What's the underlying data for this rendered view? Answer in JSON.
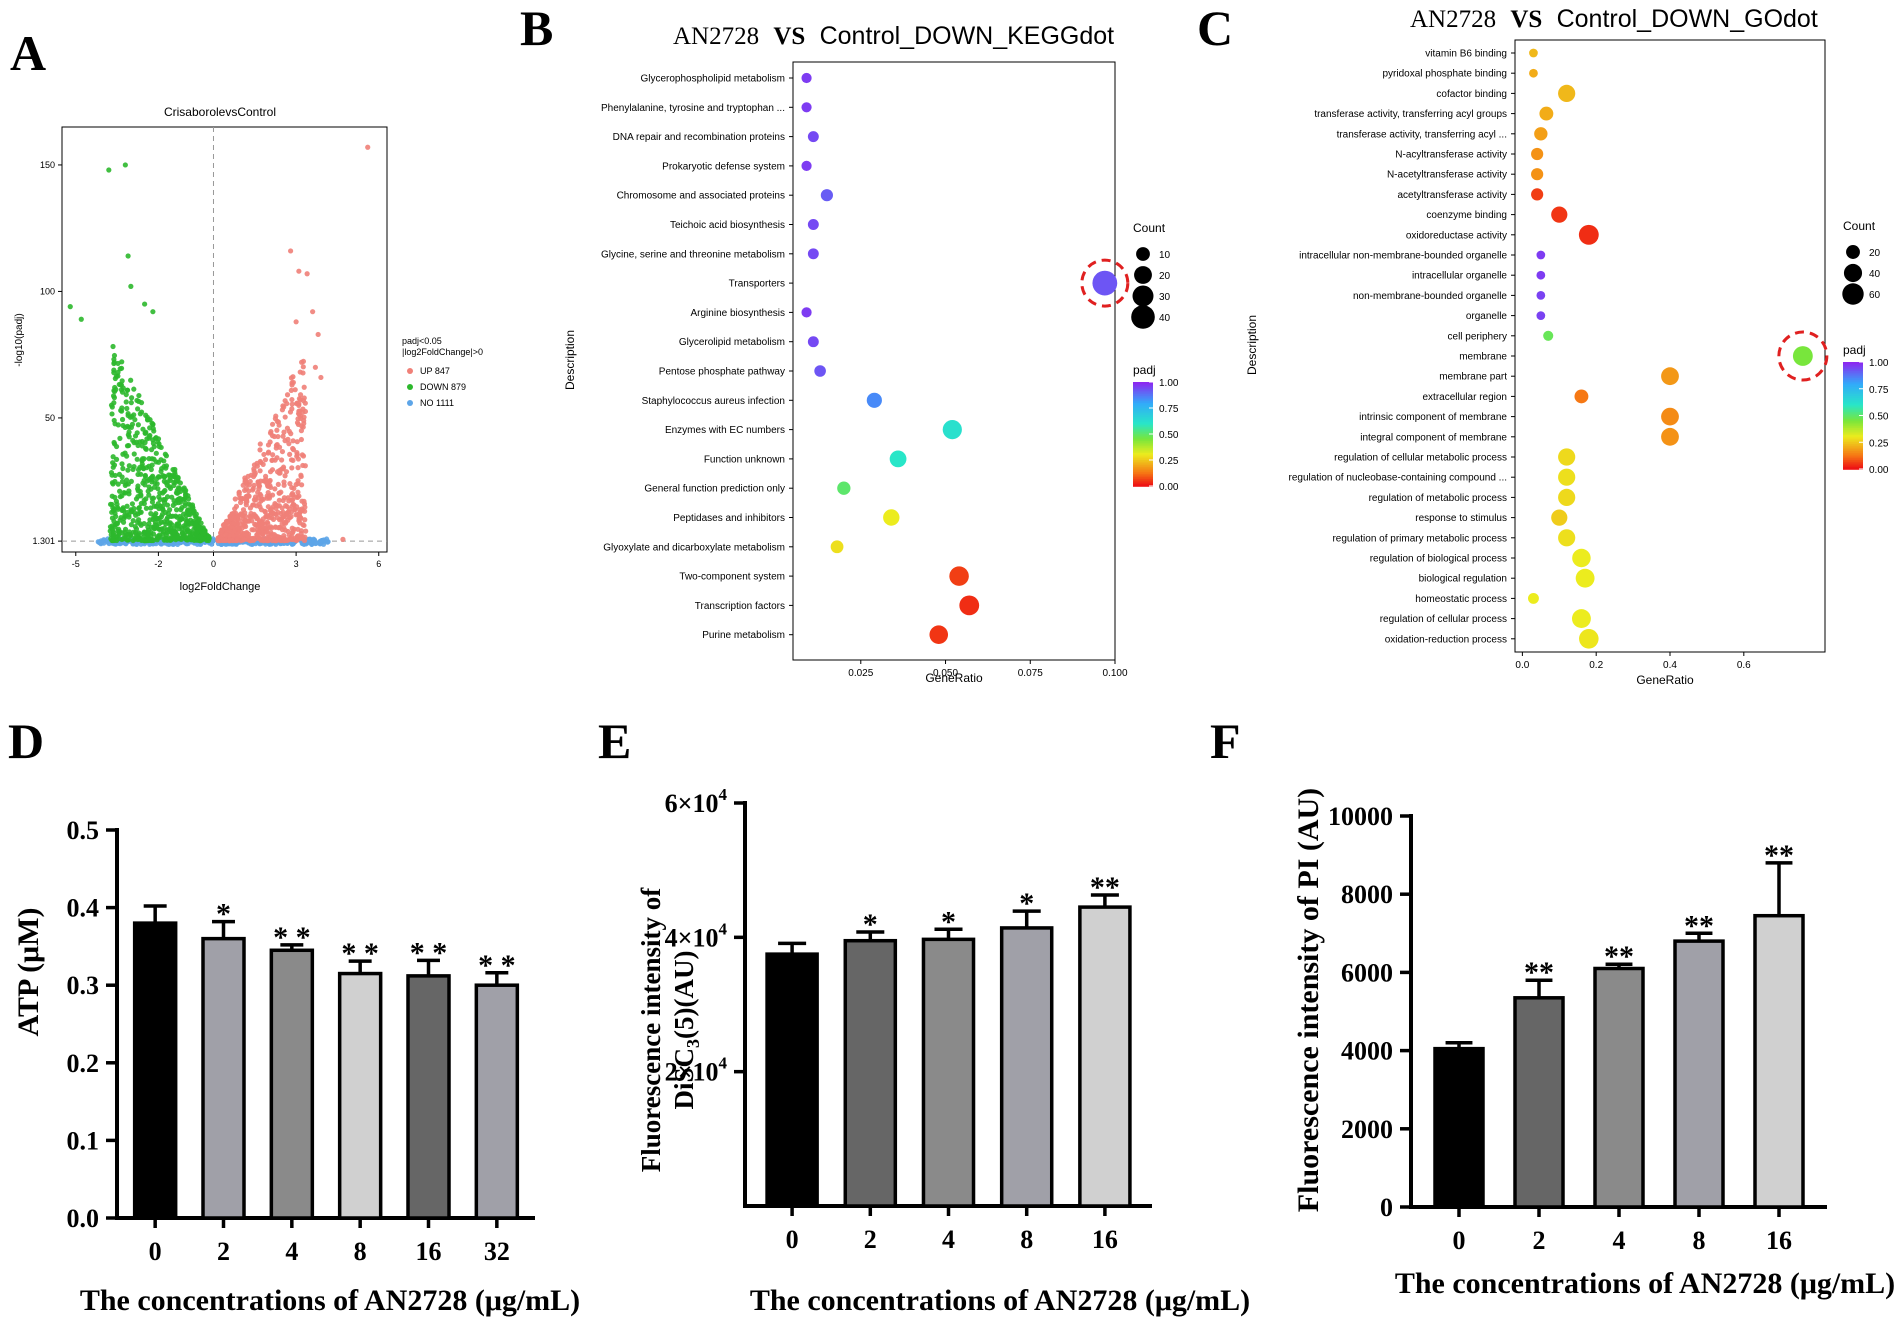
{
  "panel_labels": {
    "A": "A",
    "B": "B",
    "C": "C",
    "D": "D",
    "E": "E",
    "F": "F"
  },
  "colors": {
    "up": "#F08078",
    "down": "#2CB82C",
    "no": "#5DA5E8",
    "bar_black": "#000000",
    "bar_dark": "#666666",
    "bar_mid": "#8A8A8A",
    "bar_light": "#D0D0D0",
    "bar_light2": "#A0A0A8",
    "highlight": "#E02020"
  },
  "chart_data": [
    {
      "id": "A",
      "type": "scatter",
      "title": "CrisaborolevsControl",
      "xlabel": "log2FoldChange",
      "ylabel": "-log10(padj)",
      "xlim": [
        -5.5,
        6.3
      ],
      "ylim": [
        -3,
        165
      ],
      "xticks": [
        -5,
        -2,
        0,
        3,
        6
      ],
      "yticks": [
        1.301,
        50,
        100,
        150
      ],
      "ytick_labels": [
        "1.301",
        "50",
        "100",
        "150"
      ],
      "threshold_y": 1.301,
      "legend_title": "padj<0.05\n|log2FoldChange|>0",
      "legend": [
        {
          "name": "UP 847",
          "key": "up"
        },
        {
          "name": "DOWN 879",
          "key": "down"
        },
        {
          "name": "NO 1111",
          "key": "no"
        }
      ],
      "series": [
        {
          "name": "UP",
          "counts": 847,
          "outliers": [
            [
              5.6,
              157
            ],
            [
              2.8,
              116
            ],
            [
              3.1,
              108
            ],
            [
              3.4,
              107
            ],
            [
              3.6,
              92
            ],
            [
              3.8,
              83
            ],
            [
              3.7,
              70
            ],
            [
              3.9,
              66
            ],
            [
              3.2,
              72
            ],
            [
              2.9,
              64
            ],
            [
              3.0,
              88
            ],
            [
              4.7,
              2
            ]
          ]
        },
        {
          "name": "DOWN",
          "counts": 879,
          "outliers": [
            [
              -3.2,
              150
            ],
            [
              -3.8,
              148
            ],
            [
              -5.2,
              94
            ],
            [
              -4.8,
              89
            ],
            [
              -3.1,
              114
            ],
            [
              -3.0,
              102
            ],
            [
              -2.5,
              95
            ],
            [
              -2.2,
              92
            ],
            [
              -3.6,
              72
            ]
          ]
        },
        {
          "name": "NO",
          "counts": 1111
        }
      ]
    },
    {
      "id": "B",
      "type": "scatter",
      "title_left": "AN2728",
      "title_vs": "VS",
      "title_right": "Control_DOWN_KEGGdot",
      "xlabel": "GeneRatio",
      "ylabel": "Description",
      "xlim": [
        0.005,
        0.1
      ],
      "xticks": [
        0.025,
        0.05,
        0.075,
        0.1
      ],
      "xtick_labels": [
        "0.025",
        "0.050",
        "0.075",
        "0.100"
      ],
      "categories": [
        "Glycerophospholipid metabolism",
        "Phenylalanine, tyrosine and tryptophan ...",
        "DNA repair and recombination proteins",
        "Prokaryotic defense system",
        "Chromosome and associated proteins",
        "Teichoic acid biosynthesis",
        "Glycine, serine and threonine metabolism",
        "Transporters",
        "Arginine biosynthesis",
        "Glycerolipid metabolism",
        "Pentose phosphate pathway",
        "Staphylococcus aureus infection",
        "Enzymes with EC numbers",
        "Function unknown",
        "General function prediction only",
        "Peptidases and inhibitors",
        "Glyoxylate and dicarboxylate metabolism",
        "Two-component system",
        "Transcription factors",
        "Purine metabolism"
      ],
      "gene_ratio": [
        0.009,
        0.009,
        0.011,
        0.009,
        0.015,
        0.011,
        0.011,
        0.097,
        0.009,
        0.011,
        0.013,
        0.029,
        0.052,
        0.036,
        0.02,
        0.034,
        0.018,
        0.054,
        0.057,
        0.048
      ],
      "count": [
        4,
        4,
        5,
        4,
        7,
        5,
        5,
        45,
        4,
        5,
        6,
        13,
        24,
        17,
        9,
        16,
        8,
        25,
        26,
        22
      ],
      "padj": [
        0.97,
        0.97,
        0.95,
        0.97,
        0.92,
        0.95,
        0.95,
        0.93,
        0.97,
        0.95,
        0.93,
        0.85,
        0.62,
        0.6,
        0.5,
        0.3,
        0.28,
        0.05,
        0.03,
        0.04
      ],
      "size_legend_title": "Count",
      "size_legend": [
        10,
        20,
        30,
        40
      ],
      "color_legend_title": "padj",
      "color_ticks": [
        "1.00",
        "0.75",
        "0.50",
        "0.25",
        "0.00"
      ],
      "highlight": "Transporters"
    },
    {
      "id": "C",
      "type": "scatter",
      "title_left": "AN2728",
      "title_vs": "VS",
      "title_right": "Control_DOWN_GOdot",
      "xlabel": "GeneRatio",
      "ylabel": "Description",
      "xlim": [
        -0.02,
        0.82
      ],
      "xticks": [
        0,
        0.2,
        0.4,
        0.6
      ],
      "xtick_labels": [
        "0.0",
        "0.2",
        "0.4",
        "0.6"
      ],
      "categories": [
        "vitamin B6 binding",
        "pyridoxal phosphate binding",
        "cofactor binding",
        "transferase activity, transferring acyl groups",
        "transferase activity, transferring acyl ...",
        "N-acyltransferase activity",
        "N-acetyltransferase activity",
        "acetyltransferase activity",
        "coenzyme binding",
        "oxidoreductase activity",
        "intracellular non-membrane-bounded organelle",
        "intracellular organelle",
        "non-membrane-bounded organelle",
        "organelle",
        "cell periphery",
        "membrane",
        "membrane part",
        "extracellular region",
        "intrinsic component of membrane",
        "integral component of membrane",
        "regulation of cellular metabolic process",
        "regulation of nucleobase-containing compound ...",
        "regulation of metabolic process",
        "response to stimulus",
        "regulation of primary metabolic process",
        "regulation of biological process",
        "biological regulation",
        "homeostatic process",
        "regulation of cellular process",
        "oxidation-reduction process"
      ],
      "gene_ratio": [
        0.03,
        0.03,
        0.12,
        0.065,
        0.05,
        0.04,
        0.04,
        0.04,
        0.1,
        0.18,
        0.05,
        0.05,
        0.05,
        0.05,
        0.07,
        0.76,
        0.4,
        0.16,
        0.4,
        0.4,
        0.12,
        0.12,
        0.12,
        0.1,
        0.12,
        0.16,
        0.17,
        0.03,
        0.16,
        0.18
      ],
      "count": [
        5,
        5,
        35,
        20,
        18,
        14,
        14,
        14,
        30,
        50,
        5,
        5,
        5,
        5,
        8,
        50,
        38,
        20,
        38,
        38,
        35,
        35,
        35,
        30,
        35,
        42,
        44,
        10,
        44,
        48
      ],
      "padj": [
        0.22,
        0.2,
        0.22,
        0.2,
        0.18,
        0.16,
        0.16,
        0.05,
        0.04,
        0.03,
        0.97,
        0.97,
        0.96,
        0.96,
        0.48,
        0.45,
        0.17,
        0.12,
        0.15,
        0.16,
        0.27,
        0.28,
        0.27,
        0.25,
        0.28,
        0.3,
        0.3,
        0.3,
        0.3,
        0.29
      ],
      "size_legend_title": "Count",
      "size_legend": [
        20,
        40,
        60
      ],
      "color_legend_title": "padj",
      "color_ticks": [
        "1.00",
        "0.75",
        "0.50",
        "0.25",
        "0.00"
      ],
      "highlight": "membrane"
    },
    {
      "id": "D",
      "type": "bar",
      "ylabel": "ATP (μM)",
      "xlabel": "The concentrations of AN2728 (μg/mL)",
      "categories": [
        "0",
        "2",
        "4",
        "8",
        "16",
        "32"
      ],
      "values": [
        0.38,
        0.36,
        0.345,
        0.315,
        0.312,
        0.3
      ],
      "errors": [
        0.022,
        0.022,
        0.007,
        0.016,
        0.02,
        0.016
      ],
      "significance": [
        "",
        "*",
        "* *",
        "* *",
        "* *",
        "* *"
      ],
      "bar_colors": [
        "bar_black",
        "bar_light2",
        "bar_mid",
        "bar_light",
        "bar_dark",
        "bar_light2"
      ],
      "ylim": [
        0,
        0.5
      ],
      "yticks": [
        0,
        0.1,
        0.2,
        0.3,
        0.4,
        0.5
      ],
      "ytick_labels": [
        "0.0",
        "0.1",
        "0.2",
        "0.3",
        "0.4",
        "0.5"
      ]
    },
    {
      "id": "E",
      "type": "bar",
      "ylabel_line1": "Fluorescence intensity of",
      "ylabel_line2_a": "DiSC",
      "ylabel_line2_sub": "3",
      "ylabel_line2_b": "(5)(AU)",
      "xlabel": "The concentrations of AN2728 (μg/mL)",
      "categories": [
        "0",
        "2",
        "4",
        "8",
        "16"
      ],
      "values": [
        37500,
        39500,
        39700,
        41400,
        44500
      ],
      "errors": [
        1600,
        1300,
        1500,
        2500,
        1800
      ],
      "significance": [
        "",
        "*",
        "*",
        "*",
        "**"
      ],
      "bar_colors": [
        "bar_black",
        "bar_dark",
        "bar_mid",
        "bar_light2",
        "bar_light"
      ],
      "ylim": [
        0,
        60000
      ],
      "yticks": [
        20000,
        40000,
        60000
      ],
      "ytick_mant": [
        "2×10",
        "4×10",
        "6×10"
      ],
      "ytick_exp": [
        "4",
        "4",
        "4"
      ]
    },
    {
      "id": "F",
      "type": "bar",
      "ylabel": "Fluorescence intensity of PI (AU)",
      "xlabel": "The concentrations of AN2728 (μg/mL)",
      "categories": [
        "0",
        "2",
        "4",
        "8",
        "16"
      ],
      "values": [
        4050,
        5350,
        6100,
        6800,
        7450
      ],
      "errors": [
        150,
        450,
        110,
        200,
        1350
      ],
      "significance": [
        "",
        "**",
        "**",
        "**",
        "**"
      ],
      "bar_colors": [
        "bar_black",
        "bar_dark",
        "bar_mid",
        "bar_light2",
        "bar_light"
      ],
      "ylim": [
        0,
        10000
      ],
      "yticks": [
        0,
        2000,
        4000,
        6000,
        8000,
        10000
      ],
      "ytick_labels": [
        "0",
        "2000",
        "4000",
        "6000",
        "8000",
        "10000"
      ]
    }
  ]
}
